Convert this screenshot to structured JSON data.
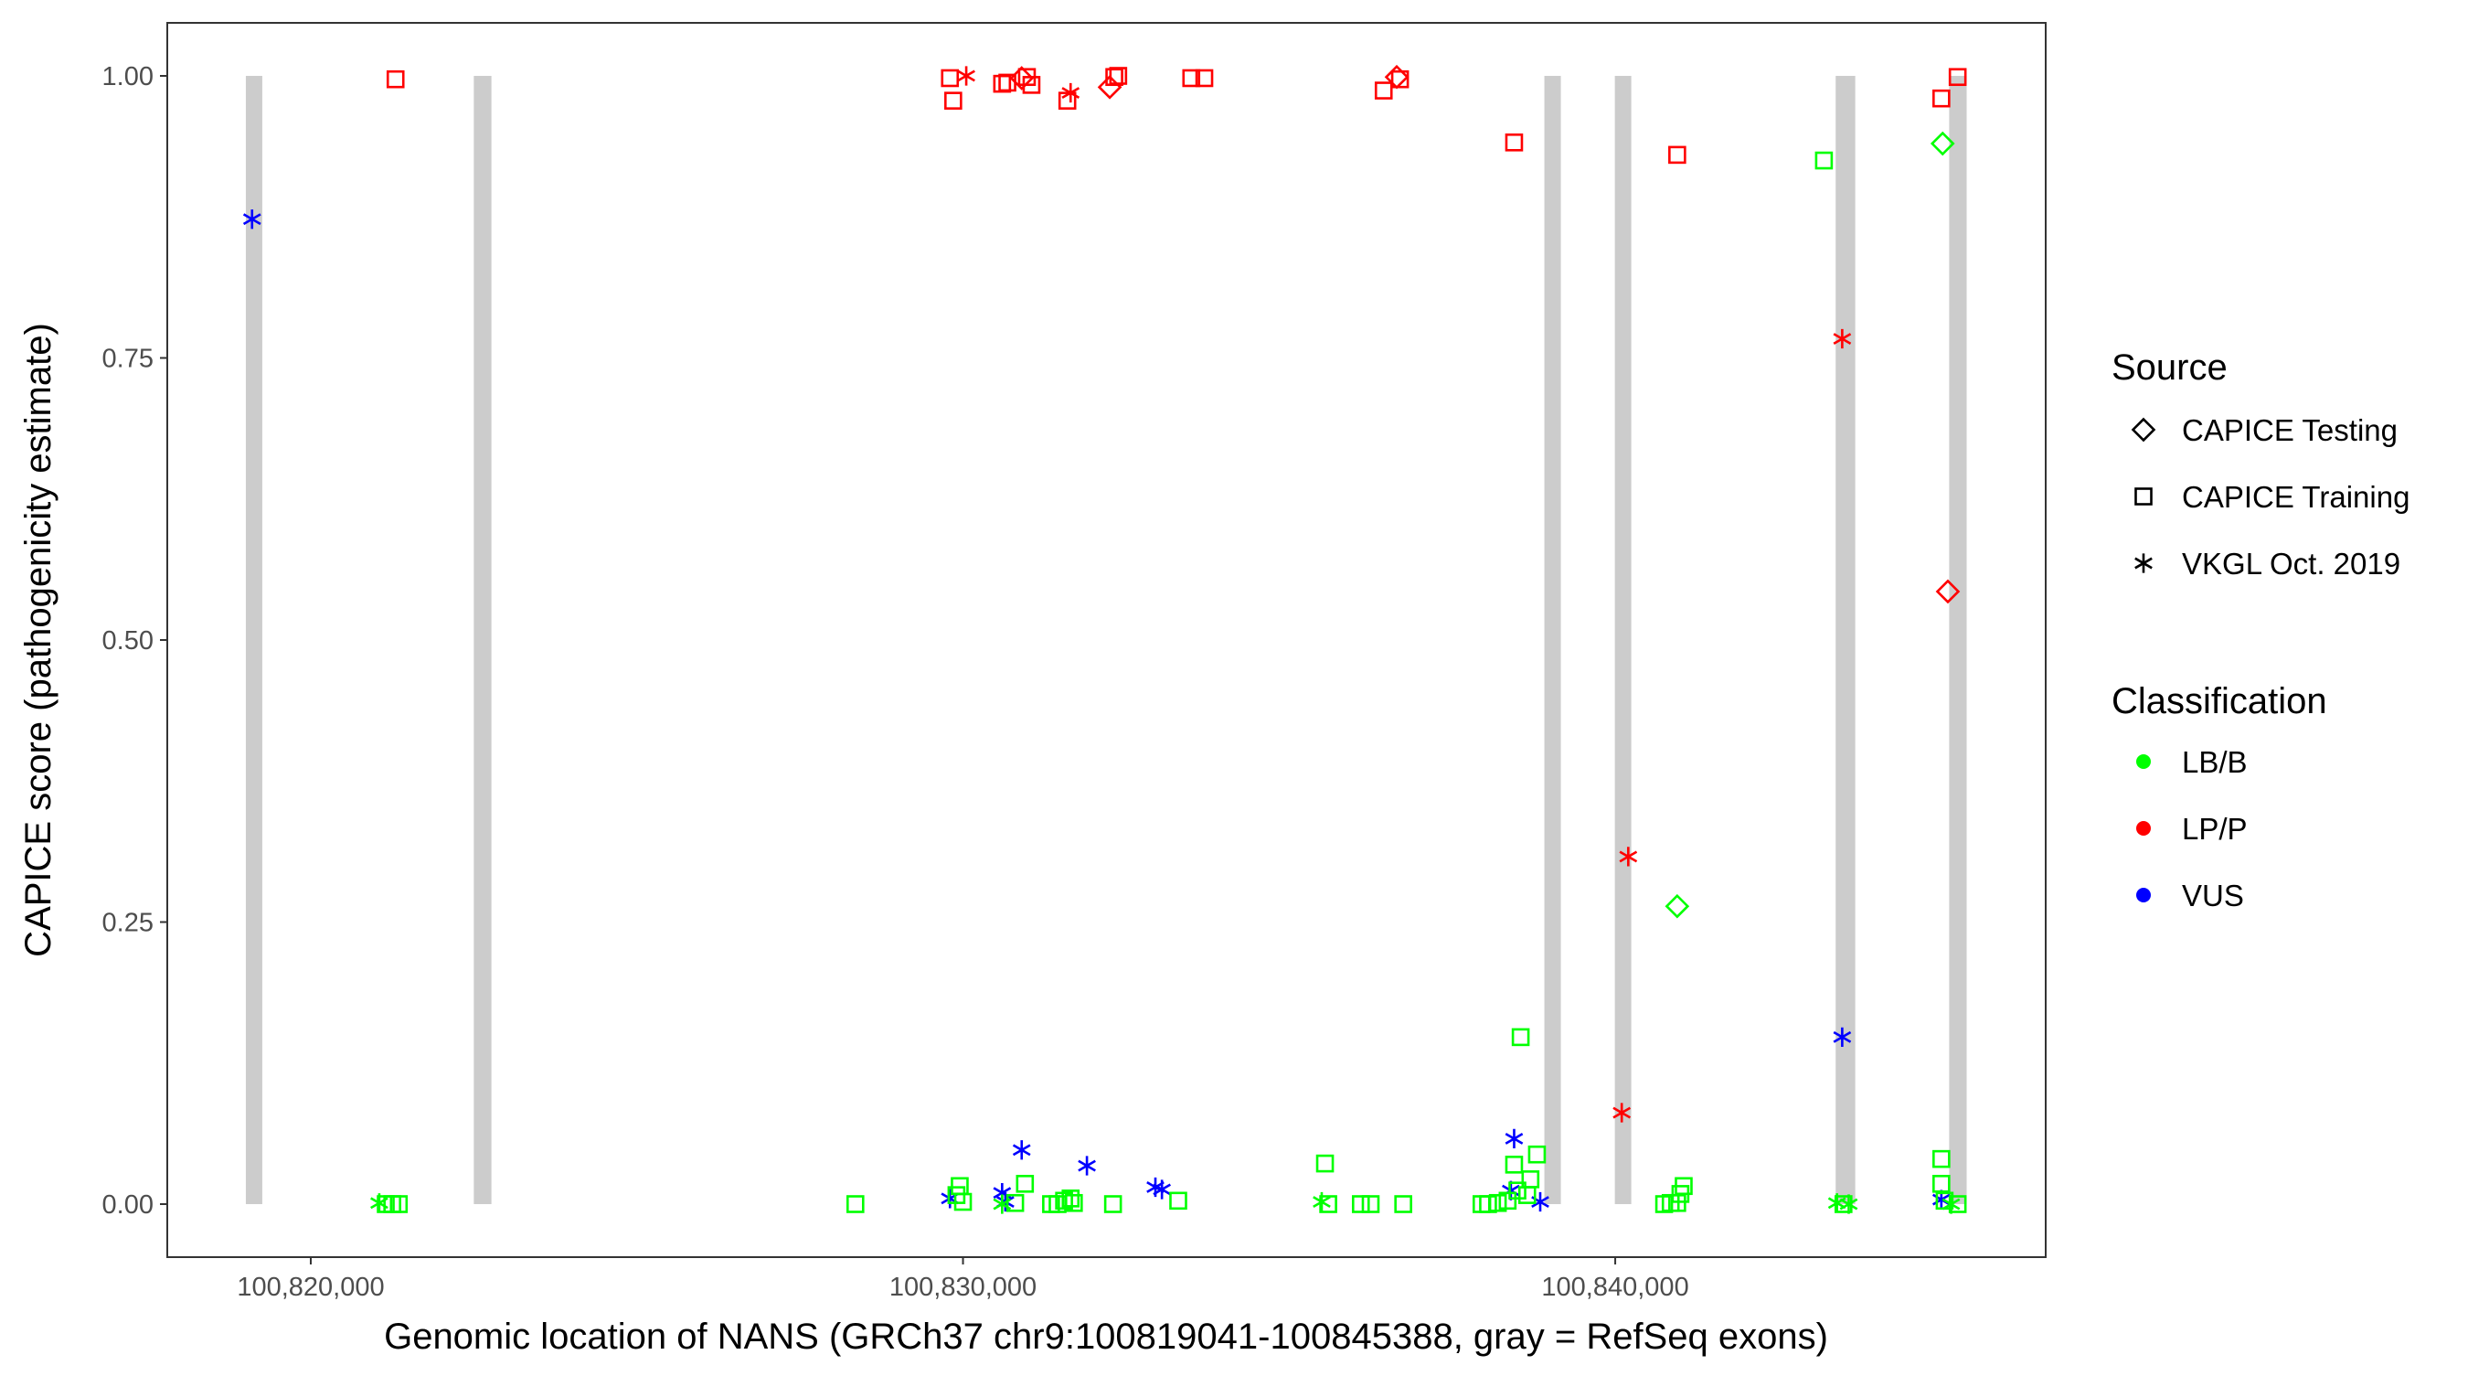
{
  "chart_data": {
    "type": "scatter",
    "title": "",
    "xlabel": "Genomic location of NANS (GRCh37 chr9:100819041-100845388, gray = RefSeq exons)",
    "ylabel": "CAPICE score (pathogenicity estimate)",
    "xlim": [
      100817800,
      100846600
    ],
    "ylim": [
      -0.047,
      1.047
    ],
    "x_ticks": [
      100820000,
      100830000,
      100840000
    ],
    "x_tick_labels": [
      "100,820,000",
      "100,830,000",
      "100,840,000"
    ],
    "y_ticks": [
      0,
      0.25,
      0.5,
      0.75,
      1.0
    ],
    "y_tick_labels": [
      "0.00",
      "0.25",
      "0.50",
      "0.75",
      "1.00"
    ],
    "grid": false,
    "exon_color": "#cccccc",
    "exons": [
      [
        100819041,
        100819220
      ],
      [
        100822500,
        100822770
      ],
      [
        100838950,
        100839130
      ],
      [
        100840000,
        100840240
      ],
      [
        100843380,
        100843680
      ],
      [
        100845120,
        100845388
      ]
    ],
    "shape_legend": {
      "title": "Source",
      "items": [
        {
          "name": "CAPICE Testing",
          "shape": "diamond"
        },
        {
          "name": "CAPICE Training",
          "shape": "square"
        },
        {
          "name": "VKGL Oct. 2019",
          "shape": "asterisk"
        }
      ]
    },
    "color_legend": {
      "title": "Classification",
      "items": [
        {
          "name": "LB/B",
          "color": "#00ff00"
        },
        {
          "name": "LP/P",
          "color": "#ff0000"
        },
        {
          "name": "VUS",
          "color": "#0000ff"
        }
      ]
    },
    "legend_position": "right",
    "points": [
      {
        "x": 100821300,
        "y": 0.997,
        "shape": "square",
        "class": "LP/P"
      },
      {
        "x": 100829800,
        "y": 0.998,
        "shape": "square",
        "class": "LP/P"
      },
      {
        "x": 100829850,
        "y": 0.978,
        "shape": "square",
        "class": "LP/P"
      },
      {
        "x": 100830050,
        "y": 1.0,
        "shape": "asterisk",
        "class": "LP/P"
      },
      {
        "x": 100830600,
        "y": 0.993,
        "shape": "square",
        "class": "LP/P"
      },
      {
        "x": 100830680,
        "y": 0.994,
        "shape": "square",
        "class": "LP/P"
      },
      {
        "x": 100830900,
        "y": 0.998,
        "shape": "diamond",
        "class": "LP/P"
      },
      {
        "x": 100830980,
        "y": 0.999,
        "shape": "square",
        "class": "LP/P"
      },
      {
        "x": 100831050,
        "y": 0.992,
        "shape": "square",
        "class": "LP/P"
      },
      {
        "x": 100831600,
        "y": 0.978,
        "shape": "square",
        "class": "LP/P"
      },
      {
        "x": 100831650,
        "y": 0.985,
        "shape": "asterisk",
        "class": "LP/P"
      },
      {
        "x": 100832250,
        "y": 0.99,
        "shape": "diamond",
        "class": "LP/P"
      },
      {
        "x": 100832320,
        "y": 0.999,
        "shape": "square",
        "class": "LP/P"
      },
      {
        "x": 100832380,
        "y": 1.0,
        "shape": "square",
        "class": "LP/P"
      },
      {
        "x": 100833500,
        "y": 0.998,
        "shape": "square",
        "class": "LP/P"
      },
      {
        "x": 100833700,
        "y": 0.998,
        "shape": "square",
        "class": "LP/P"
      },
      {
        "x": 100836450,
        "y": 0.987,
        "shape": "square",
        "class": "LP/P"
      },
      {
        "x": 100836650,
        "y": 0.999,
        "shape": "diamond",
        "class": "LP/P"
      },
      {
        "x": 100836700,
        "y": 0.997,
        "shape": "square",
        "class": "LP/P"
      },
      {
        "x": 100838450,
        "y": 0.941,
        "shape": "square",
        "class": "LP/P"
      },
      {
        "x": 100840950,
        "y": 0.93,
        "shape": "square",
        "class": "LP/P"
      },
      {
        "x": 100843480,
        "y": 0.767,
        "shape": "asterisk",
        "class": "LP/P"
      },
      {
        "x": 100845000,
        "y": 0.98,
        "shape": "square",
        "class": "LP/P"
      },
      {
        "x": 100845250,
        "y": 0.999,
        "shape": "square",
        "class": "LP/P"
      },
      {
        "x": 100845100,
        "y": 0.543,
        "shape": "diamond",
        "class": "LP/P"
      },
      {
        "x": 100840200,
        "y": 0.308,
        "shape": "asterisk",
        "class": "LP/P"
      },
      {
        "x": 100840100,
        "y": 0.081,
        "shape": "asterisk",
        "class": "LP/P"
      },
      {
        "x": 100819100,
        "y": 0.873,
        "shape": "asterisk",
        "class": "VUS"
      },
      {
        "x": 100829800,
        "y": 0.005,
        "shape": "asterisk",
        "class": "VUS"
      },
      {
        "x": 100830600,
        "y": 0.01,
        "shape": "asterisk",
        "class": "VUS"
      },
      {
        "x": 100830650,
        "y": 0.002,
        "shape": "asterisk",
        "class": "VUS"
      },
      {
        "x": 100830900,
        "y": 0.048,
        "shape": "asterisk",
        "class": "VUS"
      },
      {
        "x": 100831900,
        "y": 0.034,
        "shape": "asterisk",
        "class": "VUS"
      },
      {
        "x": 100832950,
        "y": 0.015,
        "shape": "asterisk",
        "class": "VUS"
      },
      {
        "x": 100833050,
        "y": 0.013,
        "shape": "asterisk",
        "class": "VUS"
      },
      {
        "x": 100838400,
        "y": 0.012,
        "shape": "asterisk",
        "class": "VUS"
      },
      {
        "x": 100838450,
        "y": 0.058,
        "shape": "asterisk",
        "class": "VUS"
      },
      {
        "x": 100838850,
        "y": 0.002,
        "shape": "asterisk",
        "class": "VUS"
      },
      {
        "x": 100843480,
        "y": 0.148,
        "shape": "asterisk",
        "class": "VUS"
      },
      {
        "x": 100845000,
        "y": 0.004,
        "shape": "asterisk",
        "class": "VUS"
      },
      {
        "x": 100843200,
        "y": 0.925,
        "shape": "square",
        "class": "LB/B"
      },
      {
        "x": 100845020,
        "y": 0.94,
        "shape": "diamond",
        "class": "LB/B"
      },
      {
        "x": 100840950,
        "y": 0.264,
        "shape": "diamond",
        "class": "LB/B"
      },
      {
        "x": 100838550,
        "y": 0.148,
        "shape": "square",
        "class": "LB/B"
      },
      {
        "x": 100838800,
        "y": 0.044,
        "shape": "square",
        "class": "LB/B"
      },
      {
        "x": 100838450,
        "y": 0.035,
        "shape": "square",
        "class": "LB/B"
      },
      {
        "x": 100838700,
        "y": 0.022,
        "shape": "square",
        "class": "LB/B"
      },
      {
        "x": 100838500,
        "y": 0.012,
        "shape": "square",
        "class": "LB/B"
      },
      {
        "x": 100838650,
        "y": 0.008,
        "shape": "square",
        "class": "LB/B"
      },
      {
        "x": 100838350,
        "y": 0.003,
        "shape": "square",
        "class": "LB/B"
      },
      {
        "x": 100838200,
        "y": 0.001,
        "shape": "square",
        "class": "LB/B"
      },
      {
        "x": 100837950,
        "y": 0.0,
        "shape": "square",
        "class": "LB/B"
      },
      {
        "x": 100838050,
        "y": 0.0,
        "shape": "square",
        "class": "LB/B"
      },
      {
        "x": 100835550,
        "y": 0.036,
        "shape": "square",
        "class": "LB/B"
      },
      {
        "x": 100835500,
        "y": 0.002,
        "shape": "asterisk",
        "class": "LB/B"
      },
      {
        "x": 100835600,
        "y": 0.0,
        "shape": "square",
        "class": "LB/B"
      },
      {
        "x": 100836100,
        "y": 0.0,
        "shape": "square",
        "class": "LB/B"
      },
      {
        "x": 100836250,
        "y": 0.0,
        "shape": "square",
        "class": "LB/B"
      },
      {
        "x": 100836750,
        "y": 0.0,
        "shape": "square",
        "class": "LB/B"
      },
      {
        "x": 100833300,
        "y": 0.003,
        "shape": "square",
        "class": "LB/B"
      },
      {
        "x": 100832300,
        "y": 0.0,
        "shape": "square",
        "class": "LB/B"
      },
      {
        "x": 100831550,
        "y": 0.003,
        "shape": "square",
        "class": "LB/B"
      },
      {
        "x": 100831650,
        "y": 0.005,
        "shape": "square",
        "class": "LB/B"
      },
      {
        "x": 100831700,
        "y": 0.001,
        "shape": "square",
        "class": "LB/B"
      },
      {
        "x": 100831350,
        "y": 0.0,
        "shape": "square",
        "class": "LB/B"
      },
      {
        "x": 100831450,
        "y": 0.0,
        "shape": "square",
        "class": "LB/B"
      },
      {
        "x": 100830950,
        "y": 0.018,
        "shape": "square",
        "class": "LB/B"
      },
      {
        "x": 100830800,
        "y": 0.001,
        "shape": "square",
        "class": "LB/B"
      },
      {
        "x": 100830600,
        "y": 0.0,
        "shape": "asterisk",
        "class": "LB/B"
      },
      {
        "x": 100829950,
        "y": 0.016,
        "shape": "square",
        "class": "LB/B"
      },
      {
        "x": 100829900,
        "y": 0.008,
        "shape": "square",
        "class": "LB/B"
      },
      {
        "x": 100830000,
        "y": 0.002,
        "shape": "square",
        "class": "LB/B"
      },
      {
        "x": 100828350,
        "y": 0.0,
        "shape": "square",
        "class": "LB/B"
      },
      {
        "x": 100821050,
        "y": 0.001,
        "shape": "asterisk",
        "class": "LB/B"
      },
      {
        "x": 100821150,
        "y": 0.0,
        "shape": "square",
        "class": "LB/B"
      },
      {
        "x": 100821250,
        "y": 0.0,
        "shape": "square",
        "class": "LB/B"
      },
      {
        "x": 100821350,
        "y": 0.0,
        "shape": "square",
        "class": "LB/B"
      },
      {
        "x": 100841050,
        "y": 0.016,
        "shape": "square",
        "class": "LB/B"
      },
      {
        "x": 100841000,
        "y": 0.009,
        "shape": "square",
        "class": "LB/B"
      },
      {
        "x": 100840950,
        "y": 0.001,
        "shape": "square",
        "class": "LB/B"
      },
      {
        "x": 100840750,
        "y": 0.0,
        "shape": "square",
        "class": "LB/B"
      },
      {
        "x": 100840850,
        "y": 0.001,
        "shape": "square",
        "class": "LB/B"
      },
      {
        "x": 100843400,
        "y": 0.001,
        "shape": "asterisk",
        "class": "LB/B"
      },
      {
        "x": 100843500,
        "y": 0.0,
        "shape": "square",
        "class": "LB/B"
      },
      {
        "x": 100843580,
        "y": 0.0,
        "shape": "asterisk",
        "class": "LB/B"
      },
      {
        "x": 100845000,
        "y": 0.04,
        "shape": "square",
        "class": "LB/B"
      },
      {
        "x": 100845000,
        "y": 0.018,
        "shape": "square",
        "class": "LB/B"
      },
      {
        "x": 100845050,
        "y": 0.003,
        "shape": "square",
        "class": "LB/B"
      },
      {
        "x": 100845150,
        "y": 0.0,
        "shape": "asterisk",
        "class": "LB/B"
      },
      {
        "x": 100845250,
        "y": 0.0,
        "shape": "square",
        "class": "LB/B"
      }
    ]
  }
}
